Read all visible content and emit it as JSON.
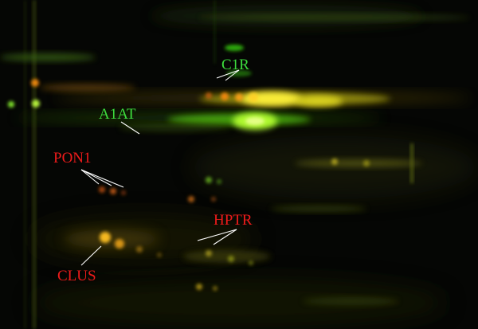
{
  "image": {
    "background_color": "#050604"
  },
  "labels": {
    "c1r": {
      "text": "C1R",
      "color": "#3ddc3d"
    },
    "a1at": {
      "text": "A1AT",
      "color": "#3ddc3d"
    },
    "pon1": {
      "text": "PON1",
      "color": "#ee1b1b"
    },
    "hptr": {
      "text": "HPTR",
      "color": "#ee1b1b"
    },
    "clus": {
      "text": "CLUS",
      "color": "#ee1b1b"
    }
  },
  "pointer_color": "#ffffff"
}
